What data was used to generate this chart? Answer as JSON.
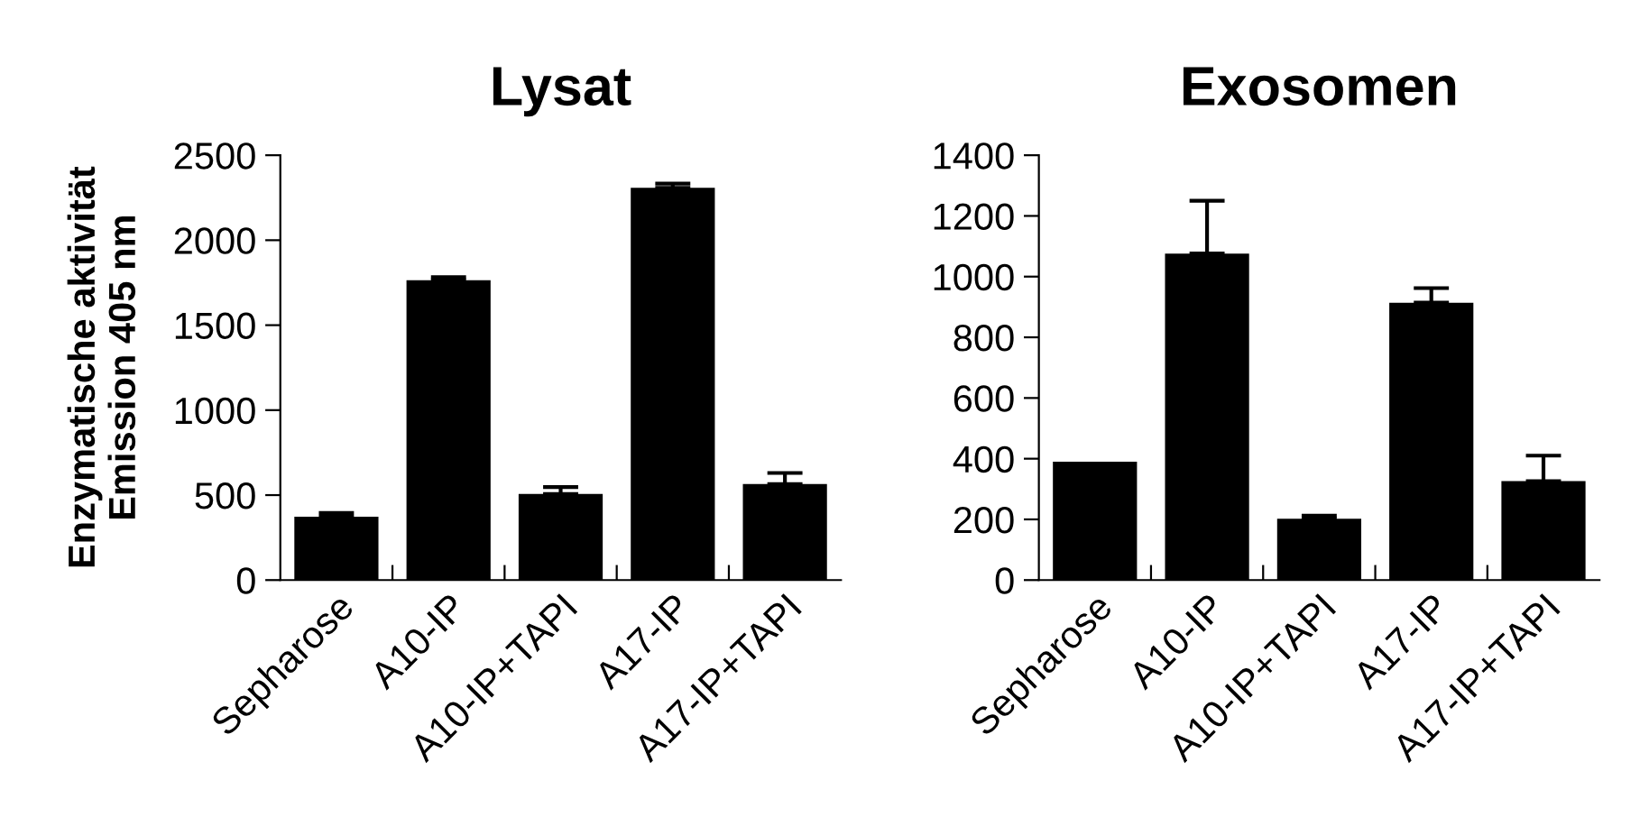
{
  "chart_data": [
    {
      "type": "bar",
      "title": "Lysat",
      "ylabel": "Enzymatische aktivität\nEmission 405 nm",
      "categories": [
        "Sepharose",
        "A10-IP",
        "A10-IP+TAPI",
        "A17-IP",
        "A17-IP+TAPI"
      ],
      "values": [
        373,
        1765,
        507,
        2308,
        565
      ],
      "errors": [
        [
          373,
          395
        ],
        [
          1765,
          1783
        ],
        [
          507,
          547
        ],
        [
          2308,
          2333
        ],
        [
          565,
          630
        ]
      ],
      "color": "#000000",
      "ylim": [
        0,
        2500
      ],
      "yticks": [
        0,
        500,
        1000,
        1500,
        2000,
        2500
      ],
      "grid": false,
      "legend": false
    },
    {
      "type": "bar",
      "title": "Exosomen",
      "categories": [
        "Sepharose",
        "A10-IP",
        "A10-IP+TAPI",
        "A17-IP",
        "A17-IP+TAPI"
      ],
      "values": [
        390,
        1076,
        202,
        914,
        326
      ],
      "errors": [
        null,
        [
          1076,
          1250
        ],
        [
          202,
          212
        ],
        [
          914,
          962
        ],
        [
          326,
          410
        ]
      ],
      "color": "#000000",
      "ylim": [
        0,
        1400
      ],
      "yticks": [
        0,
        200,
        400,
        600,
        800,
        1000,
        1200,
        1400
      ],
      "grid": false,
      "legend": false
    }
  ]
}
